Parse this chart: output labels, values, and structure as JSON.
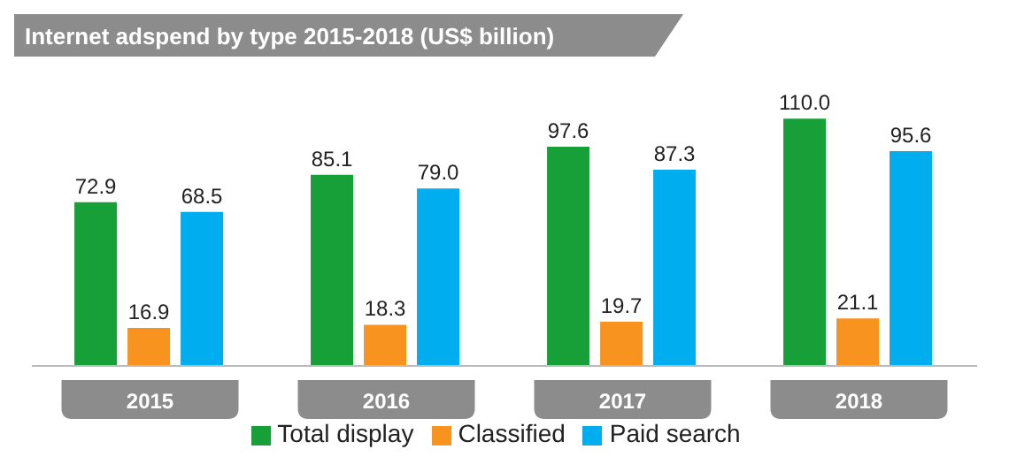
{
  "chart_data": {
    "type": "bar",
    "title": "Internet adspend by type 2015-2018 (US$ billion)",
    "categories": [
      "2015",
      "2016",
      "2017",
      "2018"
    ],
    "series": [
      {
        "name": "Total display",
        "color": "#17a038",
        "values": [
          72.9,
          85.1,
          97.6,
          110
        ],
        "value_labels": [
          "72.9",
          "85.1",
          "97.6",
          "110.0"
        ]
      },
      {
        "name": "Classified",
        "color": "#f7931e",
        "values": [
          16.9,
          18.3,
          19.7,
          21.1
        ],
        "value_labels": [
          "16.9",
          "18.3",
          "19.7",
          "21.1"
        ]
      },
      {
        "name": "Paid search",
        "color": "#00aeef",
        "values": [
          68.5,
          79,
          87.3,
          95.6
        ],
        "value_labels": [
          "68.5",
          "79.0",
          "87.3",
          "95.6"
        ]
      }
    ],
    "legend": "bottom"
  }
}
